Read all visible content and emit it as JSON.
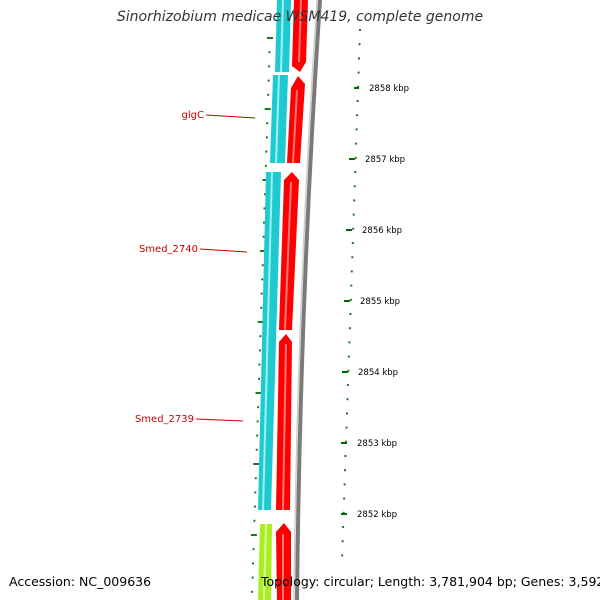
{
  "title": "Sinorhizobium medicae WSM419, complete genome",
  "accession": "Accession: NC_009636",
  "topology": "Topology: circular; Length: 3,781,904 bp; Genes: 3,592",
  "colors": {
    "cds_minus": "#1ecad0",
    "cds_plus": "#ff0000",
    "backbone": "#888888",
    "tick": "#006600",
    "gene_label": "#cc0000",
    "other_feature": "#aaee22"
  },
  "gene_labels": [
    "glgC",
    "Smed_2740",
    "Smed_2739"
  ],
  "kbp_labels": [
    "2858 kbp",
    "2857 kbp",
    "2856 kbp",
    "2855 kbp",
    "2854 kbp",
    "2853 kbp",
    "2852 kbp"
  ]
}
